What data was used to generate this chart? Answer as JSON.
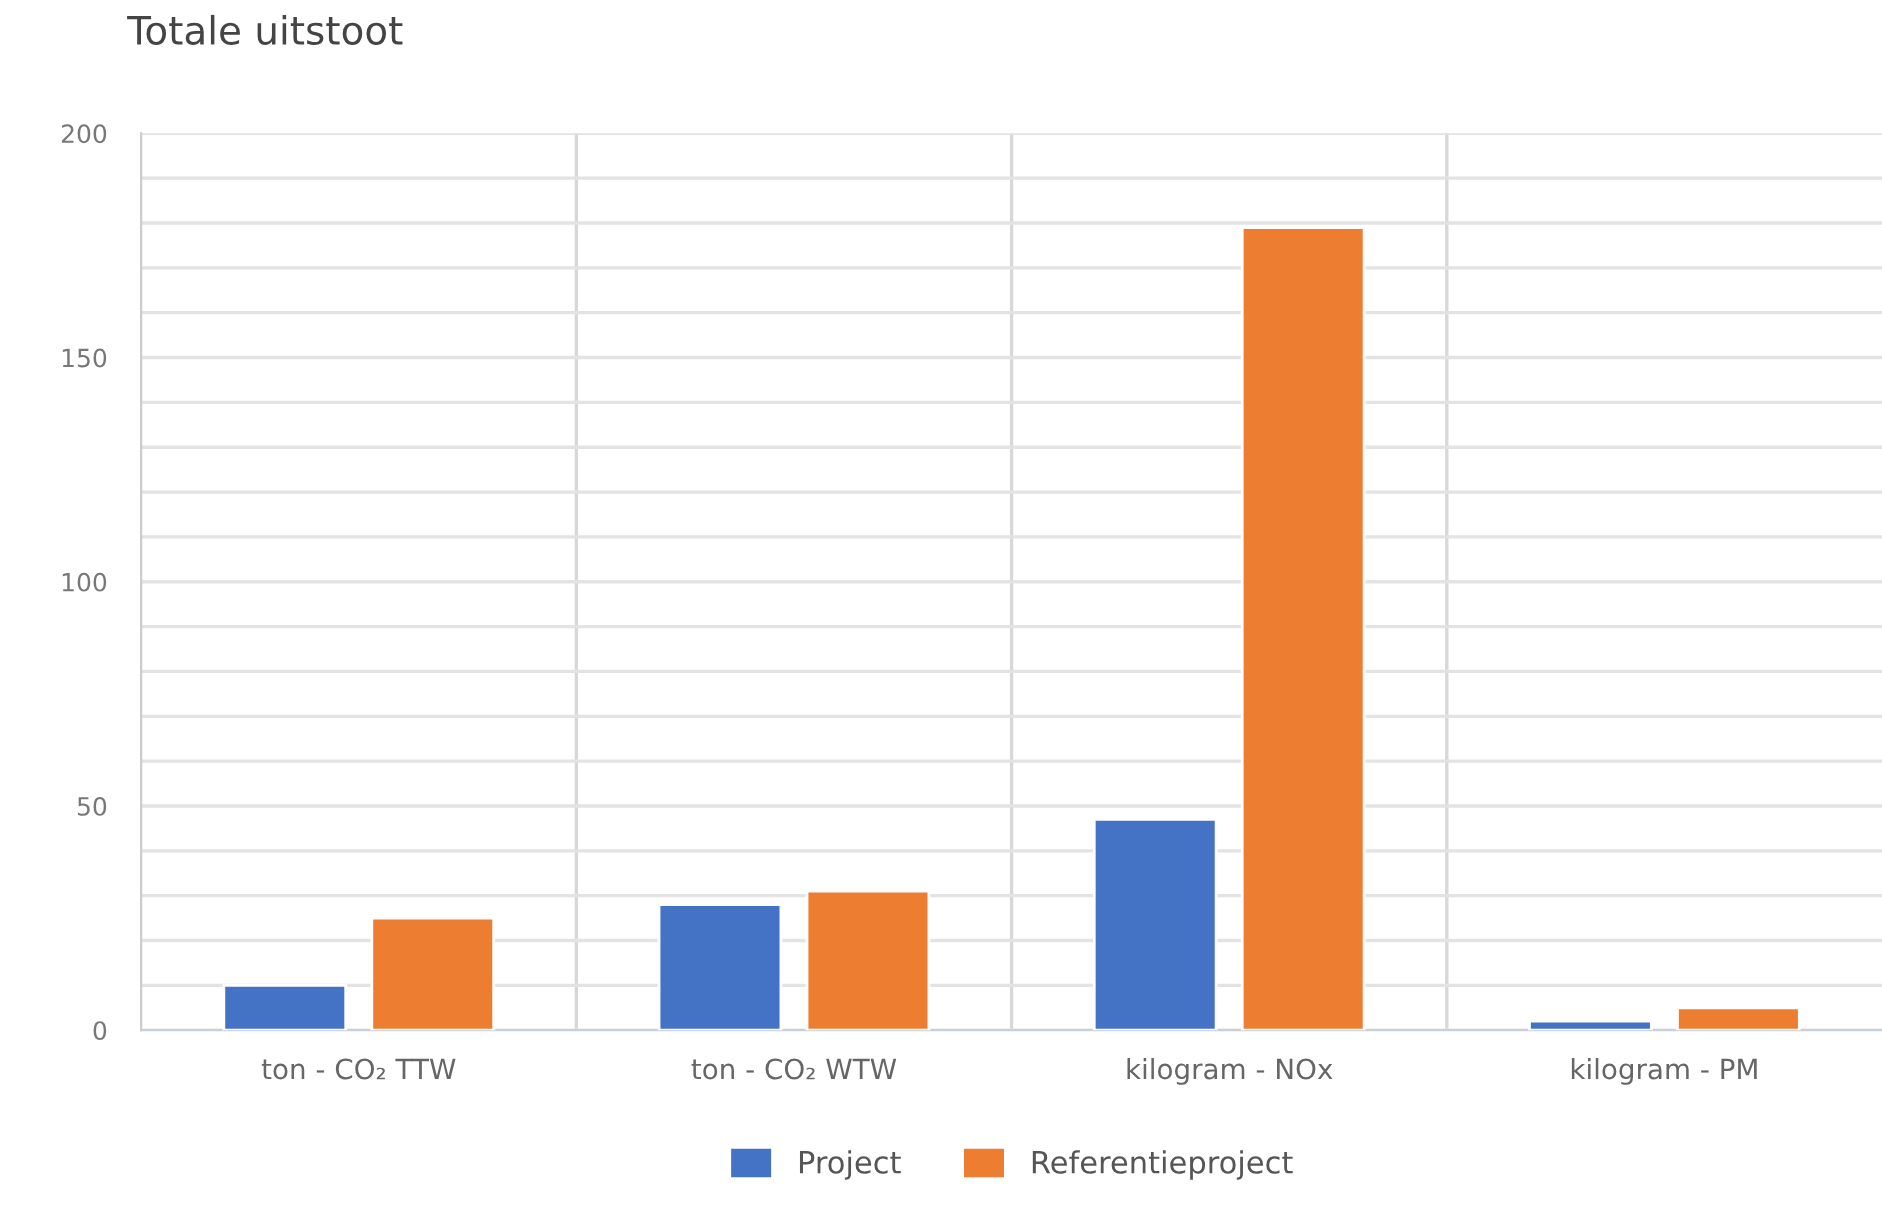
{
  "chart_data": {
    "type": "bar",
    "title": "Totale uitstoot",
    "categories": [
      "ton - CO₂ TTW",
      "ton - CO₂ WTW",
      "kilogram - NOx",
      "kilogram - PM"
    ],
    "series": [
      {
        "name": "Project",
        "color": "#4472c4",
        "values": [
          10,
          28,
          47,
          2
        ]
      },
      {
        "name": "Referentieproject",
        "color": "#ed7d31",
        "values": [
          25,
          31,
          179,
          5
        ]
      }
    ],
    "ylim": [
      0,
      200
    ],
    "yticks": [
      0,
      {
        "value": 10,
        "label": null
      },
      {
        "value": 20,
        "label": null
      },
      {
        "value": 30,
        "label": null
      },
      {
        "value": 40,
        "label": null
      },
      50,
      {
        "value": 60,
        "label": null
      },
      {
        "value": 70,
        "label": null
      },
      {
        "value": 80,
        "label": null
      },
      {
        "value": 90,
        "label": null
      },
      100,
      {
        "value": 110,
        "label": null
      },
      {
        "value": 120,
        "label": null
      },
      {
        "value": 130,
        "label": null
      },
      {
        "value": 140,
        "label": null
      },
      150,
      {
        "value": 160,
        "label": null
      },
      {
        "value": 170,
        "label": null
      },
      {
        "value": 180,
        "label": null
      },
      {
        "value": 190,
        "label": null
      },
      200
    ],
    "grid": true,
    "legend": "bottom"
  }
}
